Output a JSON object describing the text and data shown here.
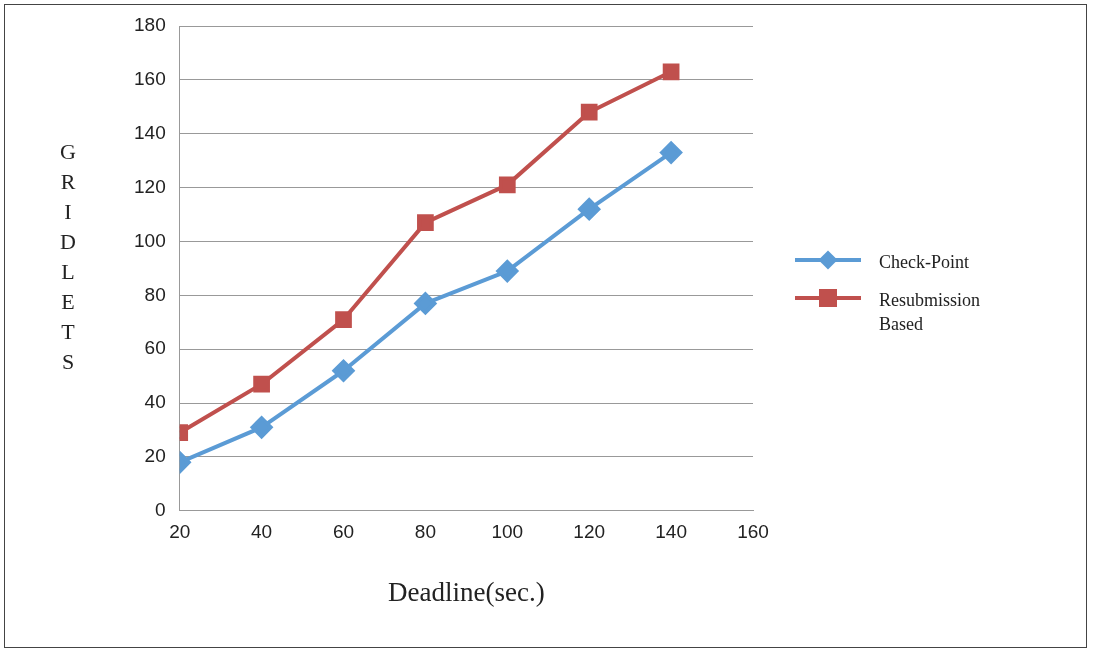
{
  "chart_data": {
    "type": "line",
    "xlabel": "Deadline(sec.)",
    "ylabel": "GRIDLETS",
    "x": [
      20,
      40,
      60,
      80,
      100,
      120,
      140
    ],
    "xlim": [
      20,
      160
    ],
    "xticks": [
      20,
      40,
      60,
      80,
      100,
      120,
      140,
      160
    ],
    "ylim": [
      0,
      180
    ],
    "yticks": [
      0,
      20,
      40,
      60,
      80,
      100,
      120,
      140,
      160,
      180
    ],
    "grid": "y",
    "legend": "right",
    "line_style": "solid",
    "series": [
      {
        "name": "Check-Point",
        "color": "#5b9bd5",
        "marker": "diamond",
        "values": [
          18,
          31,
          52,
          77,
          89,
          112,
          133
        ]
      },
      {
        "name": "Resubmission Based",
        "color": "#c0504d",
        "marker": "square",
        "values": [
          29,
          47,
          71,
          107,
          121,
          148,
          163
        ]
      }
    ]
  }
}
